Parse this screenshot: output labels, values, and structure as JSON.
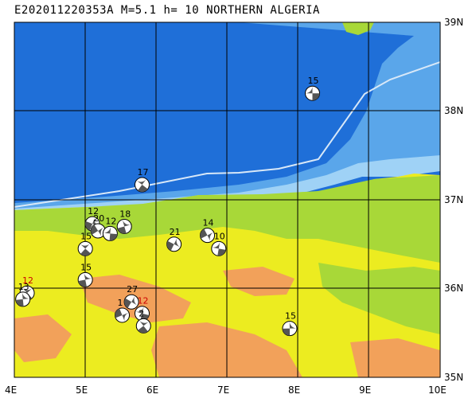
{
  "header": {
    "title": "E202011220353A M=5.1 h= 10 NORTHERN ALGERIA"
  },
  "axes": {
    "lon_labels": [
      "4E",
      "5E",
      "6E",
      "7E",
      "8E",
      "9E",
      "10E"
    ],
    "lat_labels": [
      "39N",
      "38N",
      "37N",
      "36N",
      "35N"
    ],
    "lon_range": [
      4,
      10
    ],
    "lat_range": [
      35,
      39
    ]
  },
  "colors": {
    "deep_sea": "#1f6fd8",
    "shelf_sea": "#6fb4ee",
    "coast_sea": "#bfe6fb",
    "lowland": "#ecec20",
    "green_land": "#a8d838",
    "highland": "#f2a15a",
    "plate_boundary": "#d8e8f8",
    "grid": "#000000"
  },
  "events": [
    {
      "depth": "15",
      "lon": 8.2,
      "lat": 38.2,
      "label_color": "#000000"
    },
    {
      "depth": "17",
      "lon": 5.8,
      "lat": 37.17,
      "label_color": "#000000"
    },
    {
      "depth": "18",
      "lon": 5.55,
      "lat": 36.7,
      "label_color": "#000000"
    },
    {
      "depth": "12",
      "lon": 5.1,
      "lat": 36.73,
      "label_color": "#000000"
    },
    {
      "depth": "20",
      "lon": 5.18,
      "lat": 36.65,
      "label_color": "#000000"
    },
    {
      "depth": "12",
      "lon": 5.35,
      "lat": 36.62,
      "label_color": "#000000"
    },
    {
      "depth": "15",
      "lon": 5.0,
      "lat": 36.45,
      "label_color": "#000000"
    },
    {
      "depth": "15",
      "lon": 5.0,
      "lat": 36.1,
      "label_color": "#000000"
    },
    {
      "depth": "21",
      "lon": 6.25,
      "lat": 36.5,
      "label_color": "#000000"
    },
    {
      "depth": "14",
      "lon": 6.72,
      "lat": 36.6,
      "label_color": "#000000"
    },
    {
      "depth": "10",
      "lon": 6.88,
      "lat": 36.45,
      "label_color": "#000000"
    },
    {
      "depth": "12",
      "lon": 4.18,
      "lat": 35.95,
      "label_color": "#cc0000"
    },
    {
      "depth": "13",
      "lon": 4.12,
      "lat": 35.88,
      "label_color": "#000000"
    },
    {
      "depth": "27",
      "lon": 5.65,
      "lat": 35.85,
      "label_color": "#000000"
    },
    {
      "depth": "1",
      "lon": 5.52,
      "lat": 35.7,
      "label_color": "#000000"
    },
    {
      "depth": "12",
      "lon": 5.8,
      "lat": 35.72,
      "label_color": "#cc0000"
    },
    {
      "depth": "2",
      "lon": 5.82,
      "lat": 35.58,
      "label_color": "#000000"
    },
    {
      "depth": "15",
      "lon": 7.88,
      "lat": 35.55,
      "label_color": "#000000"
    }
  ]
}
